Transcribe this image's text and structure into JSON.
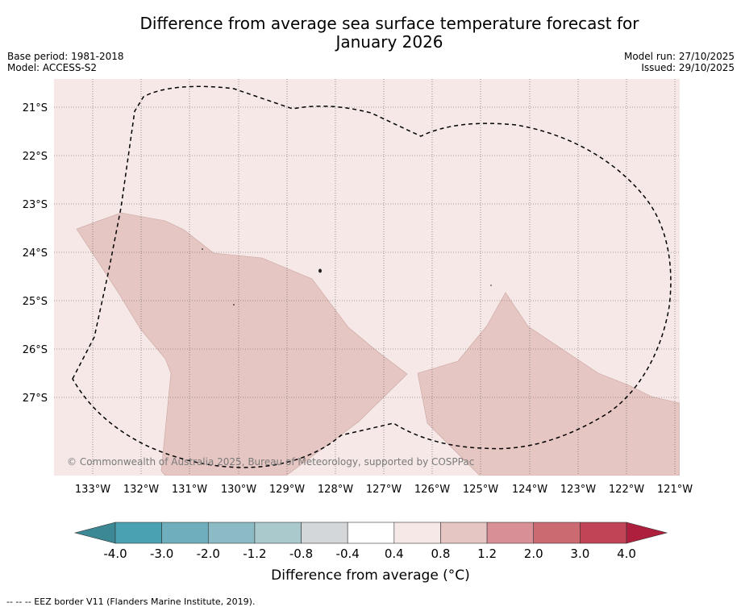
{
  "title_line1": "Difference from average sea surface temperature forecast for",
  "title_line2": "January 2026",
  "base_period": "Base period: 1981-2018",
  "model": "Model: ACCESS-S2",
  "model_run": "Model run: 27/10/2025",
  "issued": "Issued: 29/10/2025",
  "copyright": "© Commonwealth of Australia 2025, Bureau of Meteorology, supported by COSPPac",
  "lon_labels": [
    "133°W",
    "132°W",
    "131°W",
    "130°W",
    "129°W",
    "128°W",
    "127°W",
    "126°W",
    "125°W",
    "124°W",
    "123°W",
    "122°W",
    "121°W"
  ],
  "lat_labels": [
    "21°S",
    "22°S",
    "23°S",
    "24°S",
    "25°S",
    "26°S",
    "27°S"
  ],
  "colorbar": {
    "title": "Difference from average (°C)",
    "tick_labels": [
      "-4.0",
      "-3.0",
      "-2.0",
      "-1.2",
      "-0.8",
      "-0.4",
      "0.4",
      "0.8",
      "1.2",
      "2.0",
      "3.0",
      "4.0"
    ],
    "colors": [
      "#4aa1b2",
      "#6fafbd",
      "#8cbac5",
      "#a9c9cd",
      "#d4d7d9",
      "#ffffff",
      "#f5e8e7",
      "#e6c6c2",
      "#d88f96",
      "#cc6a72",
      "#c04455"
    ],
    "under_color": "#3c8895",
    "over_color": "#ad1f3d"
  },
  "colors": {
    "base_anomaly": "#f5e8e7",
    "warm_anomaly": "#e6c6c2"
  },
  "footer": "-- -- -- EEZ border V11 (Flanders Marine Institute, 2019)."
}
